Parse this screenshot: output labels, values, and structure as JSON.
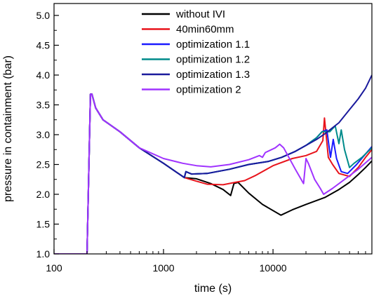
{
  "chart_data": {
    "type": "line",
    "xlabel": "time (s)",
    "ylabel": "pressure in containment (bar)",
    "xscale": "log",
    "xlim": [
      100,
      80000
    ],
    "ylim": [
      1.0,
      5.2
    ],
    "grid": false,
    "legend_position": "top-center",
    "x_ticks": [
      {
        "value": 100,
        "label": "100"
      },
      {
        "value": 1000,
        "label": "1000"
      },
      {
        "value": 10000,
        "label": "10000"
      }
    ],
    "y_ticks": [
      {
        "value": 1.0,
        "label": "1.0"
      },
      {
        "value": 1.5,
        "label": "1.5"
      },
      {
        "value": 2.0,
        "label": "2.0"
      },
      {
        "value": 2.5,
        "label": "2.5"
      },
      {
        "value": 3.0,
        "label": "3.0"
      },
      {
        "value": 3.5,
        "label": "3.5"
      },
      {
        "value": 4.0,
        "label": "4.0"
      },
      {
        "value": 4.5,
        "label": "4.5"
      },
      {
        "value": 5.0,
        "label": "5.0"
      }
    ],
    "series": [
      {
        "name": "without IVI",
        "color": "#000000",
        "points": [
          [
            100,
            1.0
          ],
          [
            200,
            1.0
          ],
          [
            215,
            3.68
          ],
          [
            222,
            3.68
          ],
          [
            240,
            3.45
          ],
          [
            280,
            3.25
          ],
          [
            400,
            3.05
          ],
          [
            600,
            2.78
          ],
          [
            1000,
            2.52
          ],
          [
            1550,
            2.28
          ],
          [
            2000,
            2.26
          ],
          [
            2700,
            2.18
          ],
          [
            3500,
            2.08
          ],
          [
            4100,
            1.98
          ],
          [
            4400,
            2.18
          ],
          [
            4800,
            2.2
          ],
          [
            6000,
            2.02
          ],
          [
            8000,
            1.83
          ],
          [
            11800,
            1.65
          ],
          [
            15000,
            1.74
          ],
          [
            20000,
            1.83
          ],
          [
            30000,
            1.95
          ],
          [
            40000,
            2.08
          ],
          [
            50000,
            2.2
          ],
          [
            60000,
            2.33
          ],
          [
            70000,
            2.45
          ],
          [
            80000,
            2.56
          ]
        ]
      },
      {
        "name": "40min60mm",
        "color": "#e8141c",
        "points": [
          [
            100,
            1.0
          ],
          [
            200,
            1.0
          ],
          [
            215,
            3.68
          ],
          [
            222,
            3.68
          ],
          [
            240,
            3.45
          ],
          [
            280,
            3.25
          ],
          [
            400,
            3.05
          ],
          [
            600,
            2.78
          ],
          [
            1000,
            2.52
          ],
          [
            1550,
            2.28
          ],
          [
            2000,
            2.22
          ],
          [
            2500,
            2.17
          ],
          [
            3500,
            2.16
          ],
          [
            4500,
            2.2
          ],
          [
            5500,
            2.23
          ],
          [
            7000,
            2.32
          ],
          [
            10000,
            2.48
          ],
          [
            15000,
            2.6
          ],
          [
            20000,
            2.65
          ],
          [
            25000,
            2.72
          ],
          [
            28500,
            2.9
          ],
          [
            29500,
            3.28
          ],
          [
            30500,
            3.0
          ],
          [
            32000,
            2.62
          ],
          [
            35000,
            2.5
          ],
          [
            40000,
            2.35
          ],
          [
            50000,
            2.3
          ],
          [
            60000,
            2.45
          ],
          [
            70000,
            2.62
          ],
          [
            80000,
            2.75
          ]
        ]
      },
      {
        "name": "optimization 1.1",
        "color": "#1a1aff",
        "points": [
          [
            100,
            1.0
          ],
          [
            200,
            1.0
          ],
          [
            215,
            3.68
          ],
          [
            222,
            3.68
          ],
          [
            240,
            3.45
          ],
          [
            280,
            3.25
          ],
          [
            400,
            3.05
          ],
          [
            600,
            2.78
          ],
          [
            1000,
            2.52
          ],
          [
            1550,
            2.28
          ],
          [
            1600,
            2.38
          ],
          [
            1800,
            2.34
          ],
          [
            2500,
            2.35
          ],
          [
            4000,
            2.42
          ],
          [
            6000,
            2.5
          ],
          [
            9000,
            2.55
          ],
          [
            12000,
            2.62
          ],
          [
            16000,
            2.72
          ],
          [
            20000,
            2.82
          ],
          [
            25000,
            2.95
          ],
          [
            28000,
            3.05
          ],
          [
            31000,
            3.08
          ],
          [
            33500,
            2.62
          ],
          [
            35500,
            2.92
          ],
          [
            38000,
            2.6
          ],
          [
            42000,
            2.38
          ],
          [
            48000,
            2.35
          ],
          [
            58000,
            2.5
          ],
          [
            68000,
            2.65
          ],
          [
            80000,
            2.8
          ]
        ]
      },
      {
        "name": "optimization 1.2",
        "color": "#008b8b",
        "points": [
          [
            100,
            1.0
          ],
          [
            200,
            1.0
          ],
          [
            215,
            3.68
          ],
          [
            222,
            3.68
          ],
          [
            240,
            3.45
          ],
          [
            280,
            3.25
          ],
          [
            400,
            3.05
          ],
          [
            600,
            2.78
          ],
          [
            1000,
            2.52
          ],
          [
            1550,
            2.28
          ],
          [
            1600,
            2.38
          ],
          [
            1800,
            2.34
          ],
          [
            2500,
            2.35
          ],
          [
            4000,
            2.42
          ],
          [
            6000,
            2.5
          ],
          [
            9000,
            2.55
          ],
          [
            12000,
            2.62
          ],
          [
            16000,
            2.72
          ],
          [
            20000,
            2.82
          ],
          [
            25000,
            2.95
          ],
          [
            28000,
            3.05
          ],
          [
            33000,
            3.05
          ],
          [
            37000,
            3.15
          ],
          [
            40000,
            2.85
          ],
          [
            42000,
            3.08
          ],
          [
            45000,
            2.75
          ],
          [
            50000,
            2.45
          ],
          [
            55000,
            2.52
          ],
          [
            65000,
            2.62
          ],
          [
            80000,
            2.78
          ]
        ]
      },
      {
        "name": "optimization 1.3",
        "color": "#1a1a9c",
        "points": [
          [
            100,
            1.0
          ],
          [
            200,
            1.0
          ],
          [
            215,
            3.68
          ],
          [
            222,
            3.68
          ],
          [
            240,
            3.45
          ],
          [
            280,
            3.25
          ],
          [
            400,
            3.05
          ],
          [
            600,
            2.78
          ],
          [
            1000,
            2.52
          ],
          [
            1550,
            2.28
          ],
          [
            1600,
            2.38
          ],
          [
            1800,
            2.34
          ],
          [
            2500,
            2.35
          ],
          [
            4000,
            2.42
          ],
          [
            6000,
            2.5
          ],
          [
            9000,
            2.55
          ],
          [
            12000,
            2.62
          ],
          [
            16000,
            2.72
          ],
          [
            20000,
            2.82
          ],
          [
            25000,
            2.92
          ],
          [
            30000,
            3.02
          ],
          [
            40000,
            3.2
          ],
          [
            50000,
            3.42
          ],
          [
            60000,
            3.6
          ],
          [
            70000,
            3.78
          ],
          [
            80000,
            4.0
          ]
        ]
      },
      {
        "name": "optimization 2",
        "color": "#a033ff",
        "points": [
          [
            100,
            1.0
          ],
          [
            200,
            1.0
          ],
          [
            215,
            3.68
          ],
          [
            222,
            3.68
          ],
          [
            240,
            3.45
          ],
          [
            280,
            3.25
          ],
          [
            400,
            3.05
          ],
          [
            600,
            2.78
          ],
          [
            1000,
            2.6
          ],
          [
            1500,
            2.52
          ],
          [
            2000,
            2.48
          ],
          [
            2700,
            2.46
          ],
          [
            4000,
            2.5
          ],
          [
            6000,
            2.58
          ],
          [
            7500,
            2.65
          ],
          [
            8000,
            2.62
          ],
          [
            8500,
            2.7
          ],
          [
            10500,
            2.78
          ],
          [
            11500,
            2.84
          ],
          [
            12500,
            2.78
          ],
          [
            16000,
            2.42
          ],
          [
            19000,
            2.18
          ],
          [
            20000,
            2.6
          ],
          [
            21000,
            2.52
          ],
          [
            24000,
            2.25
          ],
          [
            27000,
            2.1
          ],
          [
            29000,
            2.0
          ],
          [
            35000,
            2.1
          ],
          [
            45000,
            2.25
          ],
          [
            60000,
            2.42
          ],
          [
            80000,
            2.62
          ]
        ]
      }
    ]
  }
}
